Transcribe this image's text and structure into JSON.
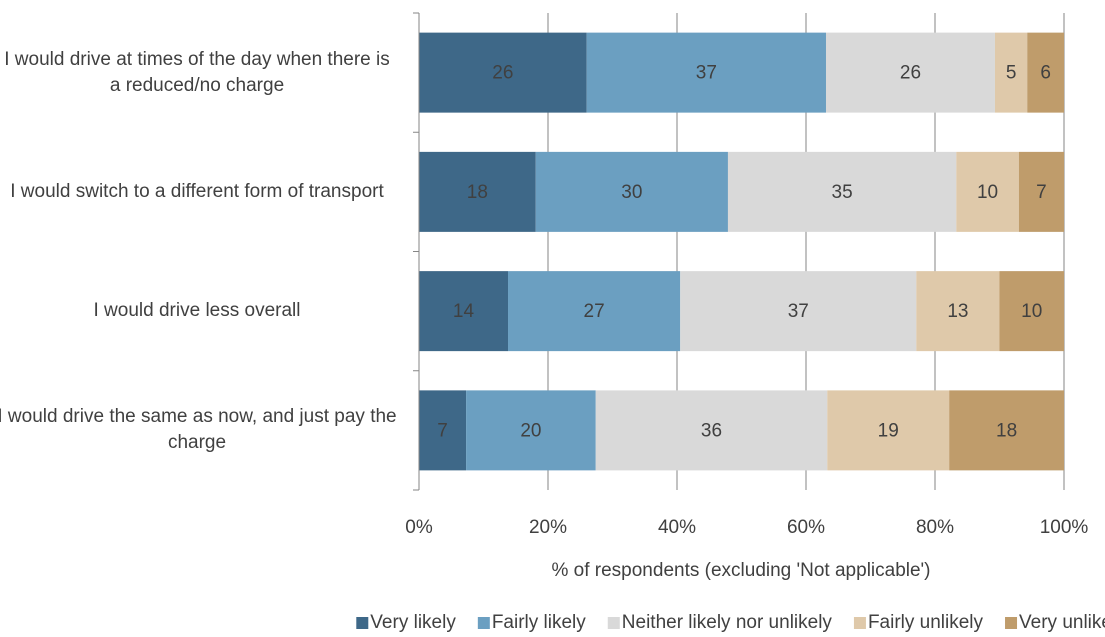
{
  "chart_data": {
    "type": "stacked_barh",
    "categories": [
      "I would drive at times of the day when there is a reduced/no charge",
      "I would switch to a different form of transport",
      "I would drive less overall",
      "I would drive the same as now, and just pay the charge"
    ],
    "series": [
      {
        "name": "Very likely",
        "color": "#3e6888",
        "values": [
          26.0,
          18.1,
          13.8,
          7.3
        ],
        "value_labels": [
          "26",
          "18",
          "14",
          "7"
        ]
      },
      {
        "name": "Fairly likely",
        "color": "#6b9fc1",
        "values": [
          37.1,
          29.8,
          26.7,
          20.1
        ],
        "value_labels": [
          "37",
          "30",
          "27",
          "20"
        ]
      },
      {
        "name": "Neither likely nor unlikely",
        "color": "#d9d9d9",
        "values": [
          26.2,
          35.4,
          36.6,
          35.9
        ],
        "value_labels": [
          "26",
          "35",
          "37",
          "36"
        ]
      },
      {
        "name": "Fairly unlikely",
        "color": "#dfc9aa",
        "values": [
          5.0,
          9.7,
          12.9,
          18.9
        ],
        "value_labels": [
          "5",
          "10",
          "13",
          "19"
        ]
      },
      {
        "name": "Very unlikely",
        "color": "#bf9c6b",
        "values": [
          5.7,
          7.0,
          10.0,
          17.8
        ],
        "value_labels": [
          "6",
          "7",
          "10",
          "18"
        ]
      }
    ],
    "xlabel": "% of respondents (excluding 'Not applicable')",
    "xlim": [
      0,
      100
    ],
    "xticks": [
      {
        "value": 0,
        "label": "0%"
      },
      {
        "value": 20,
        "label": "20%"
      },
      {
        "value": 40,
        "label": "40%"
      },
      {
        "value": 60,
        "label": "60%"
      },
      {
        "value": 80,
        "label": "80%"
      },
      {
        "value": 100,
        "label": "100%"
      }
    ],
    "grid": true,
    "legend": "bottom"
  }
}
